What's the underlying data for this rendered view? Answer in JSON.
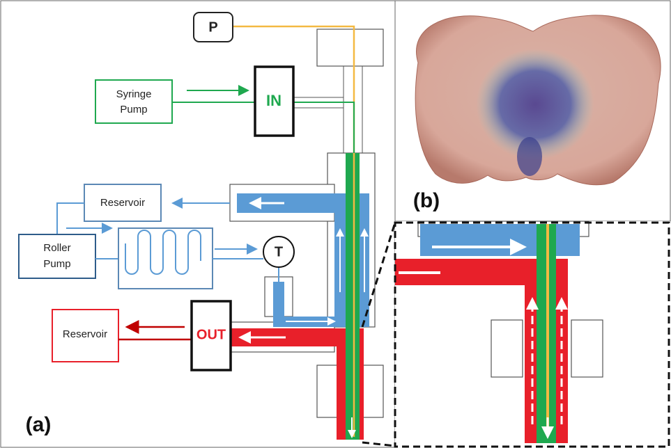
{
  "panel_a": {
    "label": "(a)",
    "pressure_sensor": "P",
    "syringe_pump": [
      "Syringe",
      "Pump"
    ],
    "inlet": "IN",
    "upper_reservoir": "Reservoir",
    "roller_pump": [
      "Roller",
      "Pump"
    ],
    "temperature_sensor": "T",
    "lower_reservoir": "Reservoir",
    "outlet": "OUT"
  },
  "panel_b": {
    "label": "(b)"
  }
}
